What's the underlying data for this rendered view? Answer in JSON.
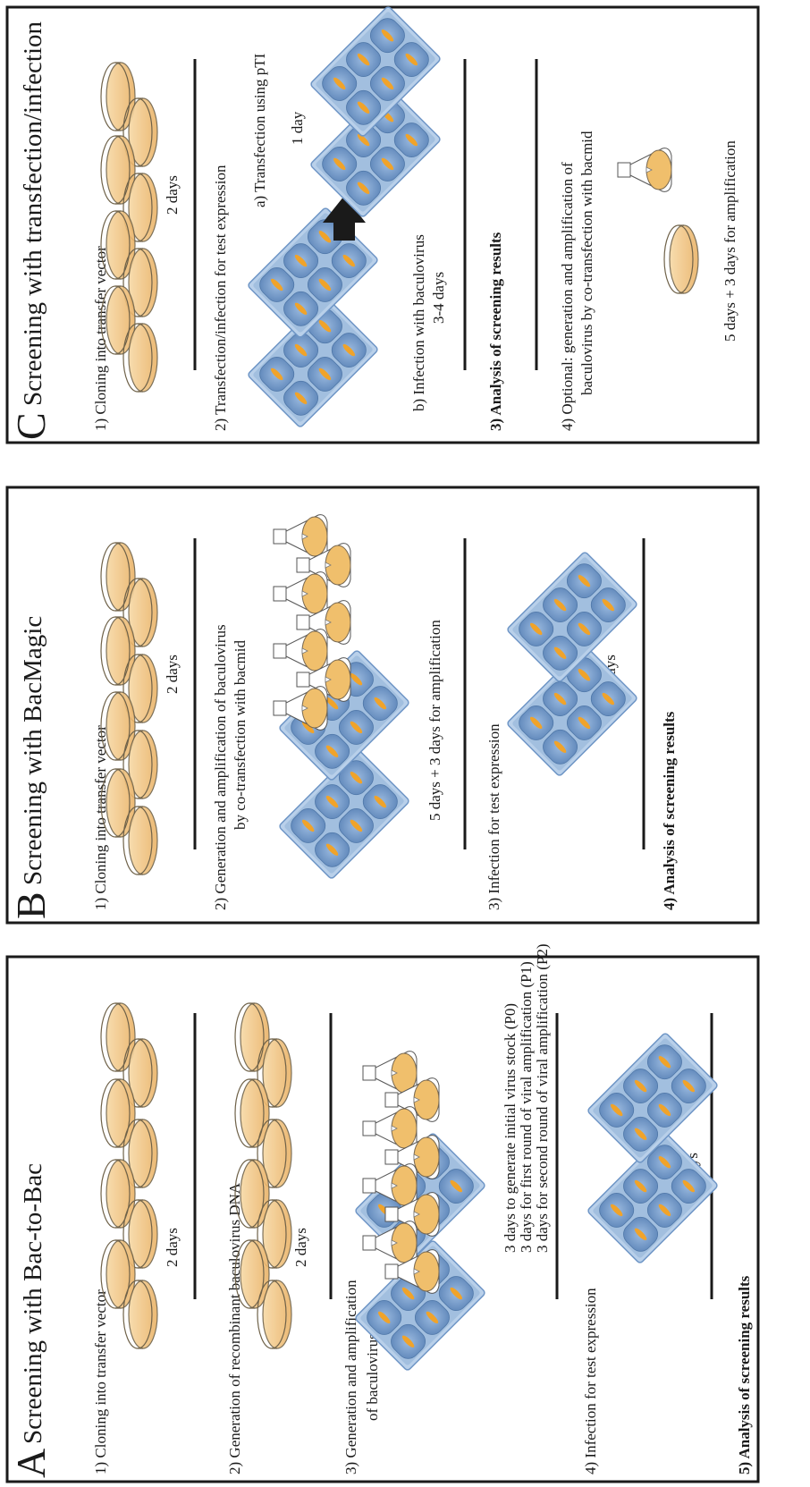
{
  "panels": [
    {
      "letter": "A",
      "title": "Screening with Bac-to-Bac",
      "steps": {
        "s1": "1) Cloning into transfer vector",
        "d1": "2 days",
        "s2": "2) Generation of recombinant baculovirus DNA",
        "d2": "2 days",
        "s3a": "3) Generation and amplification",
        "s3b": "of baculovirus",
        "d3a": "3 days to generate initial virus stock (P0)",
        "d3b": "3 days for first round of viral amplification (P1)",
        "d3c": "3 days for second round of viral amplification (P2)",
        "s4": "4) Infection for test expression",
        "d4": "3 days",
        "s5": "5) Analysis of screening results"
      }
    },
    {
      "letter": "B",
      "title": "Screening with BacMagic",
      "steps": {
        "s1": "1) Cloning into transfer vector",
        "d1": "2 days",
        "s2a": "2) Generation and amplification of baculovirus",
        "s2b": "by co-transfection with bacmid",
        "d2": "5 days + 3 days for amplification",
        "s3": "3) Infection for test expression",
        "d3": "3 days",
        "s4": "4) Analysis of screening results"
      }
    },
    {
      "letter": "C",
      "title": "Screening with transfection/infection",
      "steps": {
        "s1": "1) Cloning into transfer vector",
        "d1": "2 days",
        "s2": "2) Transfection/infection for test expression",
        "s2a": "a) Transfection using pTI",
        "d2a": "1 day",
        "s2b": "b) Infection with baculovirus",
        "d2b": "3-4 days",
        "s3": "3) Analysis of screening results",
        "s4a": "4) Optional: generation and amplification of",
        "s4b": "baculovirus by co-transfection with bacmid",
        "d4": "5 days + 3 days for amplification"
      }
    }
  ],
  "colors": {
    "dish": "#f2c27a",
    "dish_outline": "#7a6a52",
    "plate": "#8fb0d6",
    "well": "#6f96c6",
    "well_dot": "#f0a32a",
    "plate_edge": "#b9d0ea"
  }
}
